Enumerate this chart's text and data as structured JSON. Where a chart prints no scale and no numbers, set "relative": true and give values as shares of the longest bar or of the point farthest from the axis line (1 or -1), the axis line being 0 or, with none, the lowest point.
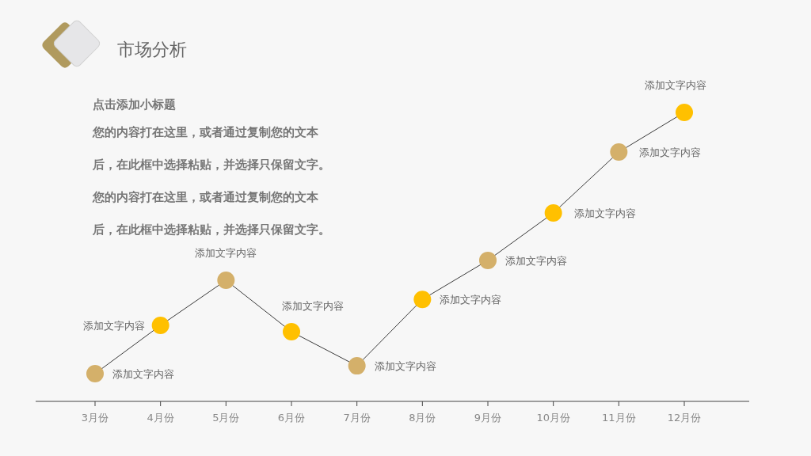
{
  "chart_data": {
    "type": "line",
    "title": "市场分析",
    "subtitle": "点击添加小标题",
    "categories": [
      "3月份",
      "4月份",
      "5月份",
      "6月份",
      "7月份",
      "8月份",
      "9月份",
      "10月份",
      "11月份",
      "12月份"
    ],
    "relative": true,
    "marker": "circle",
    "line_style": "solid",
    "series": [
      {
        "color": "#3a3a3a",
        "values": [
          0.096,
          0.263,
          0.419,
          0.241,
          0.123,
          0.353,
          0.488,
          0.652,
          0.863,
          1
        ],
        "colors": [
          "#d4b06a",
          "#ffc000",
          "#d4b06a",
          "#ffc000",
          "#d4b06a",
          "#ffc000",
          "#d4b06a",
          "#ffc000",
          "#d4b06a",
          "#ffc000"
        ]
      }
    ],
    "annotations": [
      "您的内容打在这里，或者通过复制您的文本",
      "后，在此框中选择粘贴，并选择只保留文字。",
      "您的内容打在这里，或者通过复制您的文本",
      "后，在此框中选择粘贴，并选择只保留文字。",
      {
        "text": "添加文字内容",
        "x": "3月份",
        "y": 0.096
      },
      {
        "text": "添加文字内容",
        "x": "4月份",
        "y": 0.263
      },
      {
        "text": "添加文字内容",
        "x": "5月份",
        "y": 0.419
      },
      {
        "text": "添加文字内容",
        "x": "6月份",
        "y": 0.241
      },
      {
        "text": "添加文字内容",
        "x": "7月份",
        "y": 0.123
      },
      {
        "text": "添加文字内容",
        "x": "8月份",
        "y": 0.353
      },
      {
        "text": "添加文字内容",
        "x": "9月份",
        "y": 0.488
      },
      {
        "text": "添加文字内容",
        "x": "10月份",
        "y": 0.652
      },
      {
        "text": "添加文字内容",
        "x": "11月份",
        "y": 0.863
      },
      {
        "text": "添加文字内容",
        "x": "12月份",
        "y": 1
      }
    ]
  }
}
